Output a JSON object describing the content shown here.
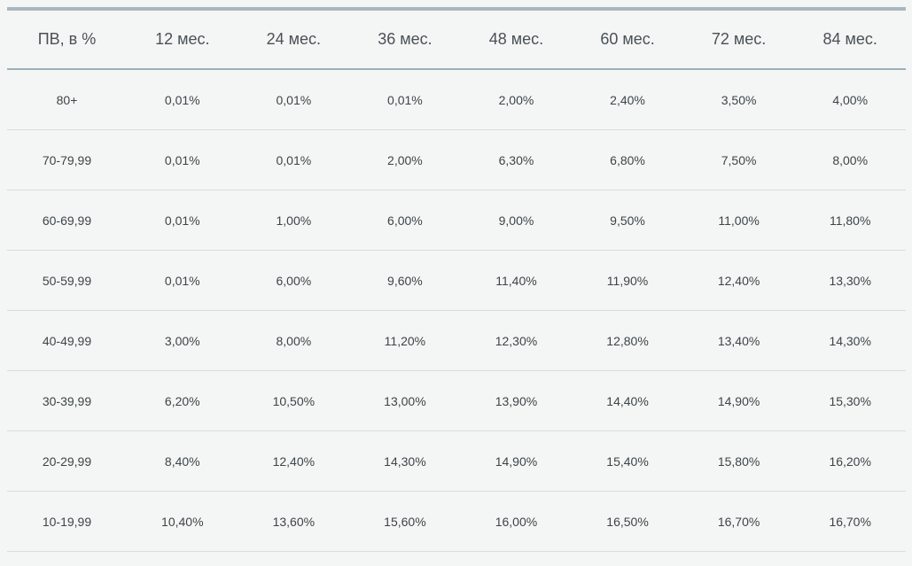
{
  "chart_data": {
    "type": "table",
    "title": "",
    "columns": [
      "ПВ, в %",
      "12 мес.",
      "24 мес.",
      "36 мес.",
      "48 мес.",
      "60 мес.",
      "72 мес.",
      "84 мес."
    ],
    "rows": [
      {
        "label": "80+",
        "values": [
          "0,01%",
          "0,01%",
          "0,01%",
          "2,00%",
          "2,40%",
          "3,50%",
          "4,00%"
        ]
      },
      {
        "label": "70-79,99",
        "values": [
          "0,01%",
          "0,01%",
          "2,00%",
          "6,30%",
          "6,80%",
          "7,50%",
          "8,00%"
        ]
      },
      {
        "label": "60-69,99",
        "values": [
          "0,01%",
          "1,00%",
          "6,00%",
          "9,00%",
          "9,50%",
          "11,00%",
          "11,80%"
        ]
      },
      {
        "label": "50-59,99",
        "values": [
          "0,01%",
          "6,00%",
          "9,60%",
          "11,40%",
          "11,90%",
          "12,40%",
          "13,30%"
        ]
      },
      {
        "label": "40-49,99",
        "values": [
          "3,00%",
          "8,00%",
          "11,20%",
          "12,30%",
          "12,80%",
          "13,40%",
          "14,30%"
        ]
      },
      {
        "label": "30-39,99",
        "values": [
          "6,20%",
          "10,50%",
          "13,00%",
          "13,90%",
          "14,40%",
          "14,90%",
          "15,30%"
        ]
      },
      {
        "label": "20-29,99",
        "values": [
          "8,40%",
          "12,40%",
          "14,30%",
          "14,90%",
          "15,40%",
          "15,80%",
          "16,20%"
        ]
      },
      {
        "label": "10-19,99",
        "values": [
          "10,40%",
          "13,60%",
          "15,60%",
          "16,00%",
          "16,50%",
          "16,70%",
          "16,70%"
        ]
      }
    ]
  },
  "colors": {
    "page_background": "#f4f6f5",
    "top_border": "#a9b7bf",
    "header_separator": "#9fafb7",
    "row_separator": "#d9dcdb",
    "header_text": "#4a5156",
    "cell_text": "#3d4448"
  }
}
